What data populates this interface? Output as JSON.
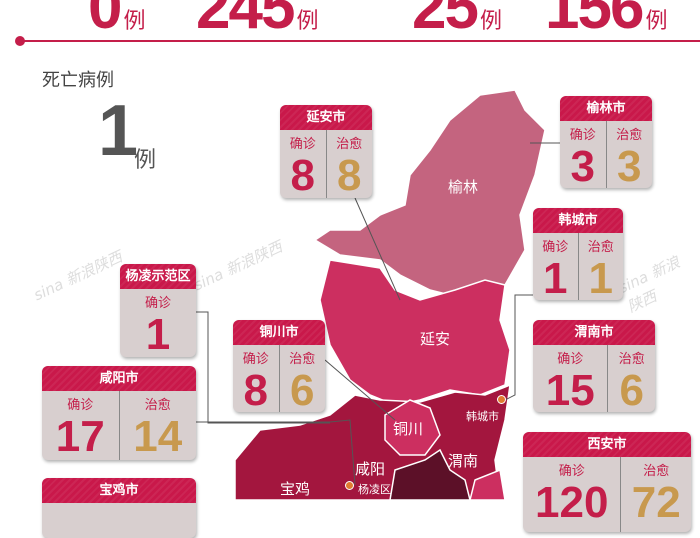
{
  "top_stats": [
    {
      "value": "0",
      "unit": "例"
    },
    {
      "value": "245",
      "unit": "例"
    },
    {
      "value": "25",
      "unit": "例"
    },
    {
      "value": "156",
      "unit": "例"
    }
  ],
  "death": {
    "label": "死亡病例",
    "value": "1",
    "unit": "例"
  },
  "watermark": "sina 新浪陕西",
  "labels": {
    "confirmed": "确诊",
    "cured": "治愈"
  },
  "cards": {
    "yanan": {
      "title": "延安市",
      "confirmed": "8",
      "cured": "8"
    },
    "yulin": {
      "title": "榆林市",
      "confirmed": "3",
      "cured": "3"
    },
    "hancheng": {
      "title": "韩城市",
      "confirmed": "1",
      "cured": "1"
    },
    "yangling": {
      "title": "杨凌示范区",
      "confirmed": "1"
    },
    "tongchuan": {
      "title": "铜川市",
      "confirmed": "8",
      "cured": "6"
    },
    "weinan": {
      "title": "渭南市",
      "confirmed": "15",
      "cured": "6"
    },
    "xianyang": {
      "title": "咸阳市",
      "confirmed": "17",
      "cured": "14"
    },
    "xian": {
      "title": "西安市",
      "confirmed": "120",
      "cured": "72"
    },
    "baoji": {
      "title": "宝鸡市"
    }
  },
  "map_labels": {
    "yulin": "榆林",
    "yanan": "延安",
    "tongchuan": "铜川",
    "weinan": "渭南",
    "xianyang": "咸阳",
    "baoji": "宝鸡",
    "hancheng": "韩城市",
    "yangling": "杨凌区"
  },
  "colors": {
    "accent": "#c41e4a",
    "cured": "#c8994e",
    "yulin": "#c4647f",
    "yanan": "#cc2f60",
    "guanzhong": "#a3163e",
    "xian": "#5c1028"
  }
}
